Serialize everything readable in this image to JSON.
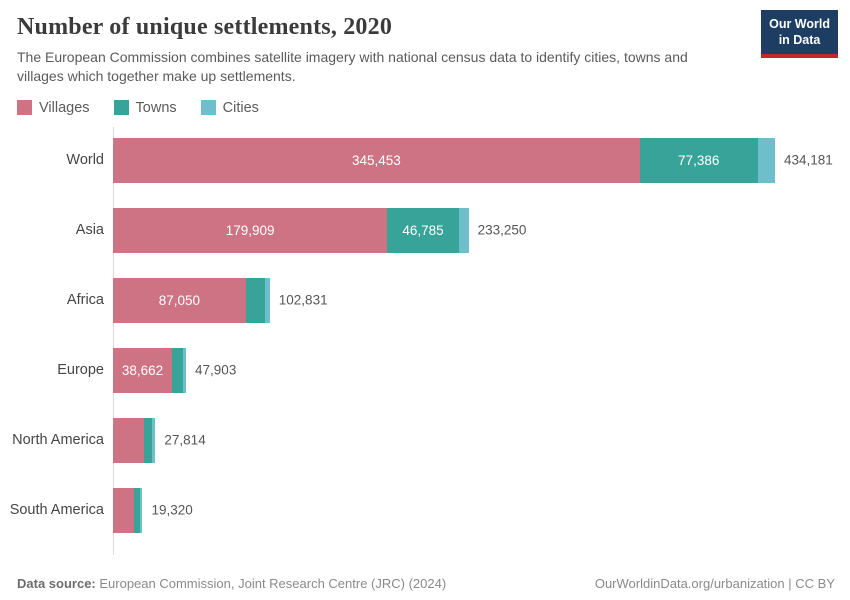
{
  "header": {
    "logo": {
      "line1": "Our World",
      "line2": "in Data",
      "bg_color": "#1d3d63",
      "accent_color": "#c1272d"
    }
  },
  "footer": {
    "data_source_label": "Data source:",
    "data_source_value": " European Commission, Joint Research Centre (JRC) (2024)",
    "link": "OurWorldinData.org/urbanization",
    "license": " | CC BY"
  },
  "chart_data": {
    "type": "bar",
    "orientation": "horizontal-stacked",
    "title": "Number of unique settlements, 2020",
    "subtitle": "The European Commission combines satellite imagery with national census data to identify cities, towns and villages which together make up settlements.",
    "legend": [
      "Villages",
      "Towns",
      "Cities"
    ],
    "legend_position": "top-left",
    "colors": {
      "villages": "#CD7384",
      "towns": "#38A398",
      "cities": "#6EBFCB"
    },
    "categories": [
      "World",
      "Asia",
      "Africa",
      "Europe",
      "North America",
      "South America"
    ],
    "series": [
      {
        "name": "Villages",
        "values": [
          345453,
          179909,
          87050,
          38662,
          20500,
          13800
        ]
      },
      {
        "name": "Towns",
        "values": [
          77386,
          46785,
          12500,
          7200,
          5300,
          4100
        ]
      },
      {
        "name": "Cities",
        "values": [
          11342,
          6556,
          3281,
          2041,
          2014,
          1420
        ]
      }
    ],
    "totals": [
      434181,
      233250,
      102831,
      47903,
      27814,
      19320
    ],
    "segment_labels": [
      [
        "345,453",
        "77,386",
        null
      ],
      [
        "179,909",
        "46,785",
        null
      ],
      [
        "87,050",
        null,
        null
      ],
      [
        "38,662",
        null,
        null
      ],
      [
        null,
        null,
        null
      ],
      [
        null,
        null,
        null
      ]
    ],
    "total_labels": [
      "434,181",
      "233,250",
      "102,831",
      "47,903",
      "27,814",
      "19,320"
    ],
    "xmax": 434181,
    "grid": false,
    "axis_color": "#dadada"
  }
}
